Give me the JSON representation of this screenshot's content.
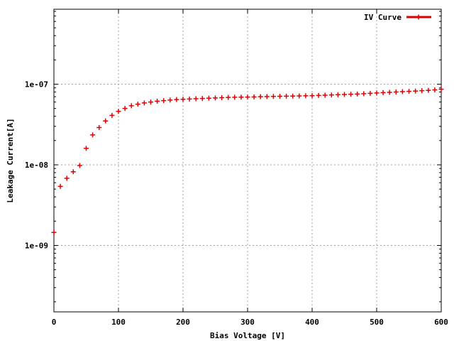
{
  "chart_data": {
    "type": "scatter",
    "xlabel": "Bias Voltage [V]",
    "ylabel": "Leakage Current[A]",
    "xlim": [
      0,
      600
    ],
    "ylim": [
      1.5e-10,
      8.5e-07
    ],
    "yscale": "log",
    "grid": true,
    "legend_position": "top-right",
    "x_ticks": [
      {
        "value": 0,
        "label": "0"
      },
      {
        "value": 100,
        "label": "100"
      },
      {
        "value": 200,
        "label": "200"
      },
      {
        "value": 300,
        "label": "300"
      },
      {
        "value": 400,
        "label": "400"
      },
      {
        "value": 500,
        "label": "500"
      },
      {
        "value": 600,
        "label": "600"
      }
    ],
    "y_ticks": [
      {
        "value": 1e-09,
        "label": "1e-09"
      },
      {
        "value": 1e-08,
        "label": "1e-08"
      },
      {
        "value": 1e-07,
        "label": "1e-07"
      }
    ],
    "series": [
      {
        "name": "IV Curve",
        "color": "#e00000",
        "points": [
          [
            0,
            1.45e-09
          ],
          [
            10,
            5.4e-09
          ],
          [
            20,
            6.8e-09
          ],
          [
            30,
            8.2e-09
          ],
          [
            40,
            9.8e-09
          ],
          [
            50,
            1.6e-08
          ],
          [
            60,
            2.35e-08
          ],
          [
            70,
            2.9e-08
          ],
          [
            80,
            3.5e-08
          ],
          [
            90,
            4.1e-08
          ],
          [
            100,
            4.6e-08
          ],
          [
            110,
            5e-08
          ],
          [
            120,
            5.4e-08
          ],
          [
            130,
            5.65e-08
          ],
          [
            140,
            5.85e-08
          ],
          [
            150,
            6e-08
          ],
          [
            160,
            6.15e-08
          ],
          [
            170,
            6.25e-08
          ],
          [
            180,
            6.35e-08
          ],
          [
            190,
            6.45e-08
          ],
          [
            200,
            6.5e-08
          ],
          [
            210,
            6.55e-08
          ],
          [
            220,
            6.6e-08
          ],
          [
            230,
            6.65e-08
          ],
          [
            240,
            6.7e-08
          ],
          [
            250,
            6.75e-08
          ],
          [
            260,
            6.8e-08
          ],
          [
            270,
            6.85e-08
          ],
          [
            280,
            6.88e-08
          ],
          [
            290,
            6.9e-08
          ],
          [
            300,
            6.92e-08
          ],
          [
            310,
            6.95e-08
          ],
          [
            320,
            7e-08
          ],
          [
            330,
            7.02e-08
          ],
          [
            340,
            7.05e-08
          ],
          [
            350,
            7.08e-08
          ],
          [
            360,
            7.1e-08
          ],
          [
            370,
            7.12e-08
          ],
          [
            380,
            7.15e-08
          ],
          [
            390,
            7.18e-08
          ],
          [
            400,
            7.2e-08
          ],
          [
            410,
            7.25e-08
          ],
          [
            420,
            7.3e-08
          ],
          [
            430,
            7.35e-08
          ],
          [
            440,
            7.4e-08
          ],
          [
            450,
            7.45e-08
          ],
          [
            460,
            7.5e-08
          ],
          [
            470,
            7.55e-08
          ],
          [
            480,
            7.62e-08
          ],
          [
            490,
            7.7e-08
          ],
          [
            500,
            7.78e-08
          ],
          [
            510,
            7.85e-08
          ],
          [
            520,
            7.92e-08
          ],
          [
            530,
            8e-08
          ],
          [
            540,
            8.08e-08
          ],
          [
            550,
            8.15e-08
          ],
          [
            560,
            8.22e-08
          ],
          [
            570,
            8.3e-08
          ],
          [
            580,
            8.38e-08
          ],
          [
            590,
            8.5e-08
          ],
          [
            600,
            8.65e-08
          ]
        ]
      }
    ]
  }
}
